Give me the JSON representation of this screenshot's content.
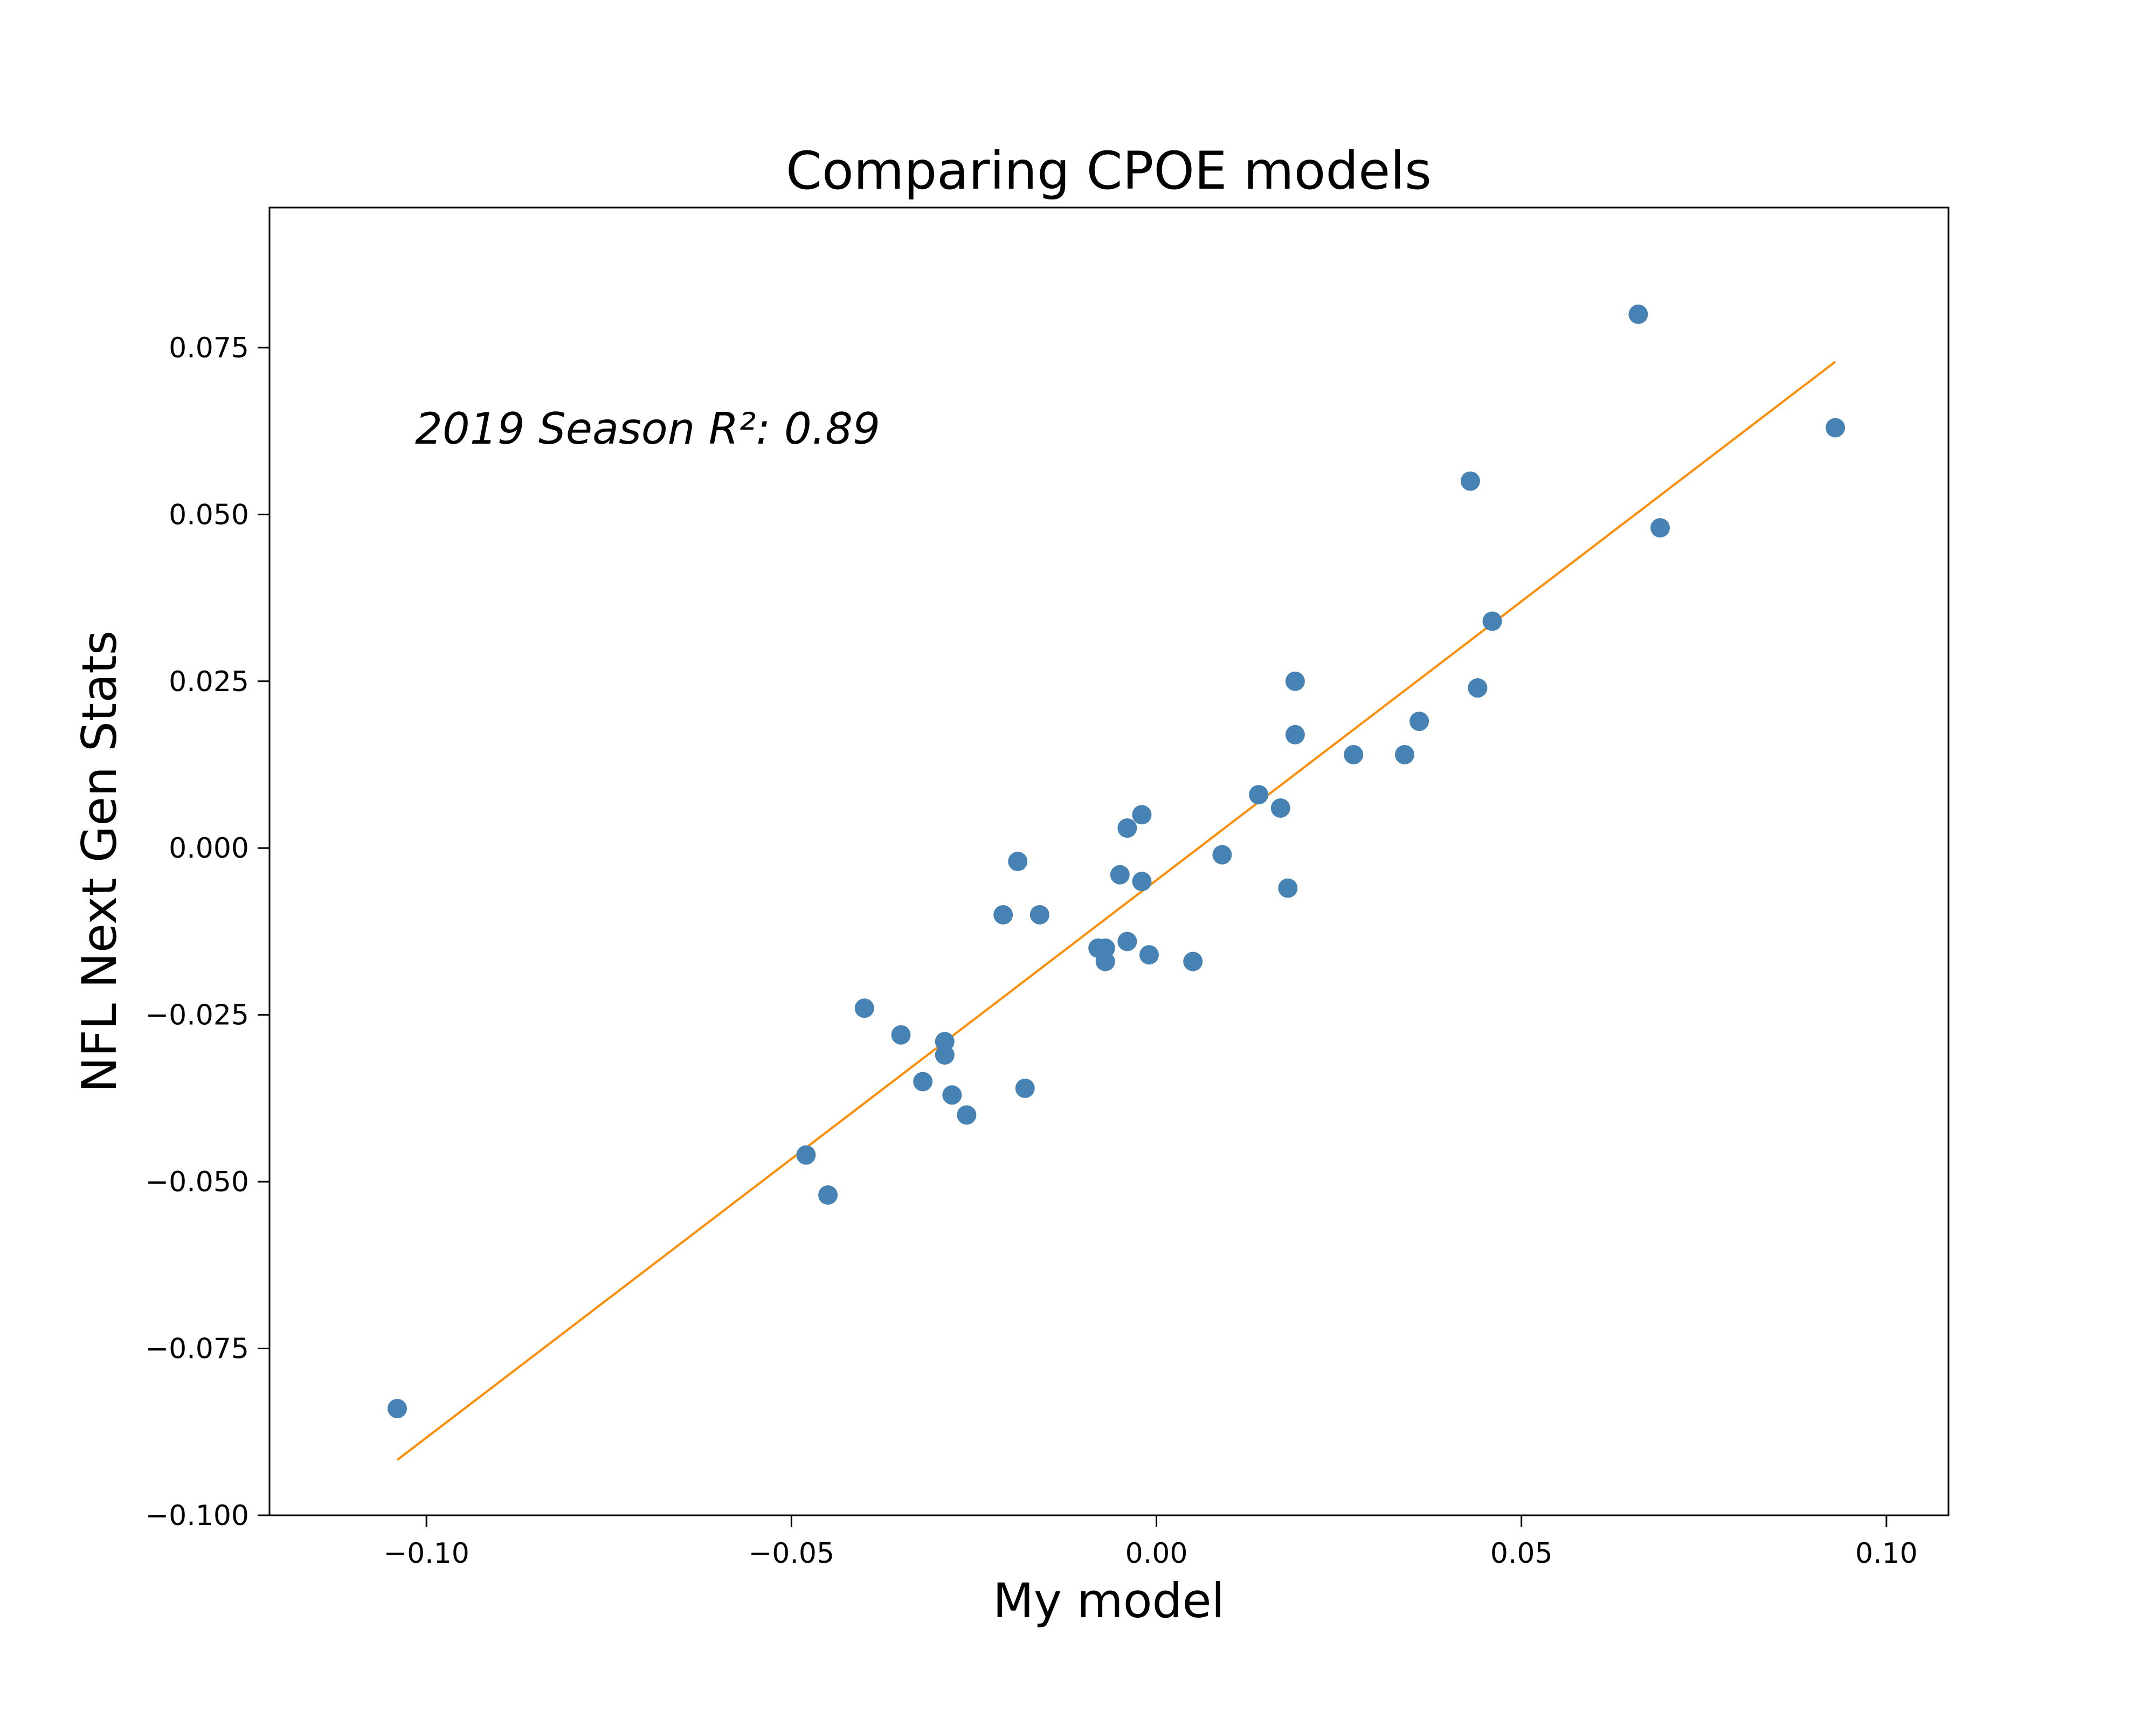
{
  "chart_data": {
    "type": "scatter",
    "title": "Comparing CPOE models",
    "xlabel": "My model",
    "ylabel": "NFL Next Gen Stats",
    "annotation": "2019 Season R²: 0.89",
    "xlim": [
      -0.1215,
      0.1085
    ],
    "ylim": [
      -0.1,
      0.096
    ],
    "x_ticks": [
      -0.1,
      -0.05,
      0.0,
      0.05,
      0.1
    ],
    "x_tick_labels": [
      "−0.10",
      "−0.05",
      "0.00",
      "0.05",
      "0.10"
    ],
    "y_ticks": [
      -0.1,
      -0.075,
      -0.05,
      -0.025,
      0.0,
      0.025,
      0.05,
      0.075
    ],
    "y_tick_labels": [
      "−0.100",
      "−0.075",
      "−0.050",
      "−0.025",
      "0.000",
      "0.025",
      "0.050",
      "0.075"
    ],
    "grid": false,
    "point_color": "#4682b4",
    "line_color": "#ff8c00",
    "points": [
      {
        "x": -0.104,
        "y": -0.084
      },
      {
        "x": -0.048,
        "y": -0.046
      },
      {
        "x": -0.045,
        "y": -0.052
      },
      {
        "x": -0.04,
        "y": -0.024
      },
      {
        "x": -0.035,
        "y": -0.028
      },
      {
        "x": -0.032,
        "y": -0.035
      },
      {
        "x": -0.029,
        "y": -0.029
      },
      {
        "x": -0.029,
        "y": -0.031
      },
      {
        "x": -0.028,
        "y": -0.037
      },
      {
        "x": -0.026,
        "y": -0.04
      },
      {
        "x": -0.021,
        "y": -0.01
      },
      {
        "x": -0.019,
        "y": -0.002
      },
      {
        "x": -0.018,
        "y": -0.036
      },
      {
        "x": -0.016,
        "y": -0.01
      },
      {
        "x": -0.008,
        "y": -0.015
      },
      {
        "x": -0.007,
        "y": -0.015
      },
      {
        "x": -0.007,
        "y": -0.017
      },
      {
        "x": -0.005,
        "y": -0.004
      },
      {
        "x": -0.004,
        "y": 0.003
      },
      {
        "x": -0.004,
        "y": -0.014
      },
      {
        "x": -0.002,
        "y": 0.005
      },
      {
        "x": -0.002,
        "y": -0.005
      },
      {
        "x": -0.001,
        "y": -0.016
      },
      {
        "x": 0.005,
        "y": -0.017
      },
      {
        "x": 0.009,
        "y": -0.001
      },
      {
        "x": 0.014,
        "y": 0.008
      },
      {
        "x": 0.017,
        "y": 0.006
      },
      {
        "x": 0.018,
        "y": -0.006
      },
      {
        "x": 0.019,
        "y": 0.025
      },
      {
        "x": 0.019,
        "y": 0.017
      },
      {
        "x": 0.027,
        "y": 0.014
      },
      {
        "x": 0.034,
        "y": 0.014
      },
      {
        "x": 0.036,
        "y": 0.019
      },
      {
        "x": 0.043,
        "y": 0.055
      },
      {
        "x": 0.044,
        "y": 0.024
      },
      {
        "x": 0.046,
        "y": 0.034
      },
      {
        "x": 0.066,
        "y": 0.08
      },
      {
        "x": 0.069,
        "y": 0.048
      },
      {
        "x": 0.093,
        "y": 0.063
      }
    ],
    "fit_line": [
      {
        "x": -0.104,
        "y": -0.0917
      },
      {
        "x": 0.093,
        "y": 0.0729
      }
    ]
  }
}
